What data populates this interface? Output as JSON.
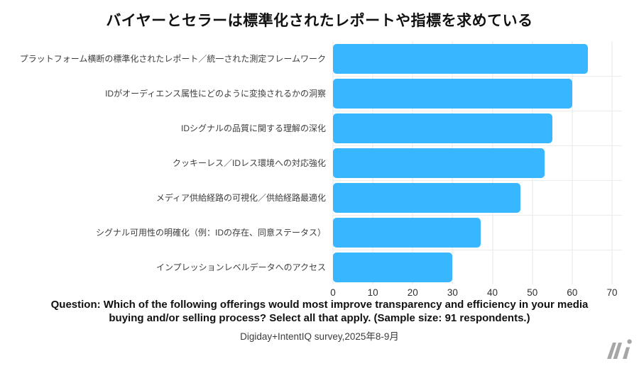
{
  "title": "バイヤーとセラーは標準化されたレポートや指標を求めている",
  "chart_data": {
    "type": "bar",
    "orientation": "horizontal",
    "categories": [
      "プラットフォーム横断の標準化されたレポート／統一された測定フレームワーク",
      "IDがオーディエンス属性にどのように変換されるかの洞察",
      "IDシグナルの品質に関する理解の深化",
      "クッキーレス／IDレス環境への対応強化",
      "メディア供給経路の可視化／供給経路最適化",
      "シグナル可用性の明確化（例：IDの存在、同意ステータス）",
      "インプレッションレベルデータへのアクセス"
    ],
    "values": [
      64,
      60,
      55,
      53,
      47,
      37,
      30
    ],
    "xlim": [
      0,
      70
    ],
    "xticks": [
      0,
      10,
      20,
      30,
      40,
      50,
      60,
      70
    ],
    "xlabel": "",
    "ylabel": "",
    "grid": true,
    "legend": "none",
    "bar_color": "#38b6ff",
    "gridline_color": "#e7e7e7"
  },
  "footer": {
    "question_lines": [
      "Question: Which of the following offerings would most improve transparency and efficiency in your media",
      "buying and/or selling process? Select all that apply. (Sample size: 91 respondents.)"
    ],
    "source": "Digiday+IntentIQ survey,2025年8-9月"
  },
  "logo": {
    "name": "media-innovation-mark",
    "color": "#a6a6a6"
  }
}
